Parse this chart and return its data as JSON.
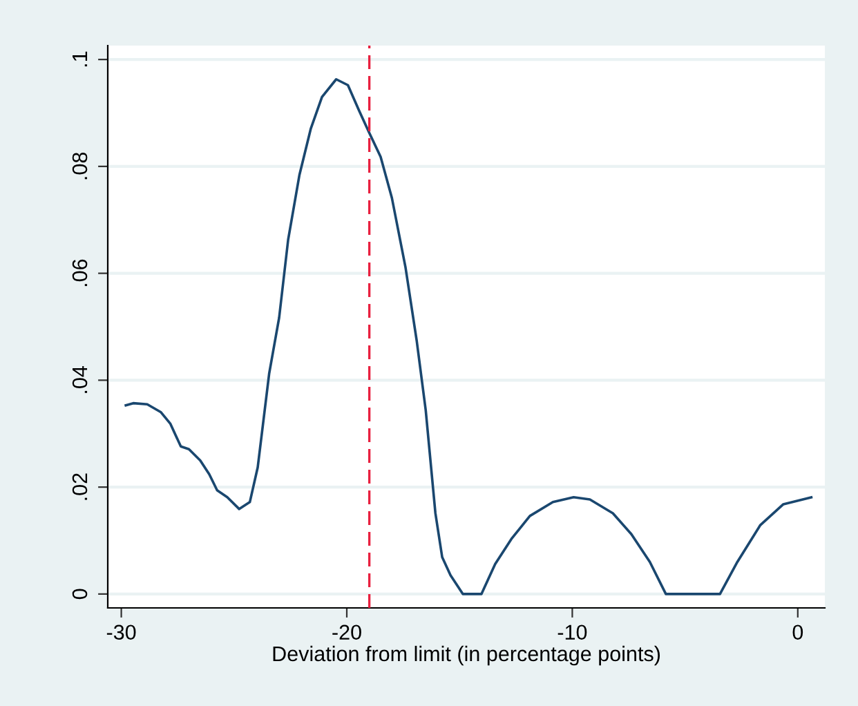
{
  "chart_data": {
    "type": "line",
    "xlabel": "Deviation from limit (in percentage points)",
    "series": [
      {
        "color": "#1a476f",
        "x": [
          -29.8,
          -29.47,
          -28.85,
          -28.24,
          -27.83,
          -27.36,
          -27.0,
          -26.5,
          -26.1,
          -25.75,
          -25.3,
          -24.77,
          -24.3,
          -23.95,
          -23.44,
          -23.0,
          -22.6,
          -22.1,
          -21.6,
          -21.1,
          -20.47,
          -19.95,
          -19.45,
          -19.04,
          -18.5,
          -18.0,
          -17.4,
          -16.9,
          -16.5,
          -16.07,
          -15.77,
          -15.4,
          -14.85,
          -14.03,
          -13.42,
          -12.7,
          -11.88,
          -10.86,
          -9.94,
          -9.22,
          -8.2,
          -7.38,
          -6.56,
          -5.85,
          -3.45,
          -2.68,
          -1.66,
          -0.64,
          0.6
        ],
        "values": [
          0.0353,
          0.0357,
          0.0355,
          0.034,
          0.0319,
          0.0276,
          0.0271,
          0.025,
          0.0224,
          0.0194,
          0.0181,
          0.0159,
          0.0172,
          0.0237,
          0.0413,
          0.0517,
          0.0663,
          0.0784,
          0.087,
          0.093,
          0.0963,
          0.0952,
          0.0904,
          0.0866,
          0.0818,
          0.0741,
          0.0612,
          0.0474,
          0.0344,
          0.0151,
          0.0069,
          0.0035,
          0.0,
          0.0,
          0.0056,
          0.0103,
          0.0146,
          0.0172,
          0.0181,
          0.0177,
          0.0151,
          0.0112,
          0.006,
          0.0,
          0.0,
          0.006,
          0.0129,
          0.0168,
          0.0181
        ]
      }
    ],
    "xlim": [
      -30.6,
      1.2
    ],
    "ylim": [
      -0.0026,
      0.1026
    ],
    "xticks": [
      -30,
      -20,
      -10,
      0
    ],
    "yticks": [
      {
        "value": 0,
        "label": "0"
      },
      {
        "value": 0.02,
        "label": ".02"
      },
      {
        "value": 0.04,
        "label": ".04"
      },
      {
        "value": 0.06,
        "label": ".06"
      },
      {
        "value": 0.08,
        "label": ".08"
      },
      {
        "value": 0.1,
        "label": ".1"
      }
    ],
    "grid": "y",
    "legend": false,
    "ref_lines": [
      {
        "axis": "x",
        "value": -19,
        "color": "#e8203f",
        "line_style": "dashed"
      }
    ]
  }
}
